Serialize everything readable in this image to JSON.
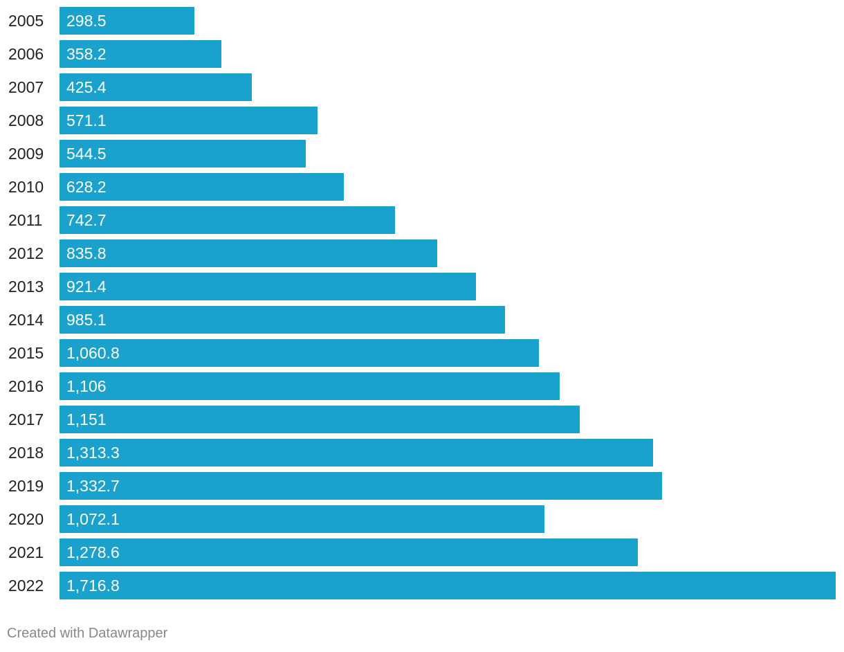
{
  "chart_data": {
    "type": "bar",
    "orientation": "horizontal",
    "categories": [
      "2005",
      "2006",
      "2007",
      "2008",
      "2009",
      "2010",
      "2011",
      "2012",
      "2013",
      "2014",
      "2015",
      "2016",
      "2017",
      "2018",
      "2019",
      "2020",
      "2021",
      "2022"
    ],
    "values": [
      298.5,
      358.2,
      425.4,
      571.1,
      544.5,
      628.2,
      742.7,
      835.8,
      921.4,
      985.1,
      1060.8,
      1106,
      1151,
      1313.3,
      1332.7,
      1072.1,
      1278.6,
      1716.8
    ],
    "value_labels": [
      "298.5",
      "358.2",
      "425.4",
      "571.1",
      "544.5",
      "628.2",
      "742.7",
      "835.8",
      "921.4",
      "985.1",
      "1,060.8",
      "1,106",
      "1,151",
      "1,313.3",
      "1,332.7",
      "1,072.1",
      "1,278.6",
      "1,716.8"
    ],
    "title": "",
    "xlabel": "",
    "ylabel": "",
    "xlim": [
      0,
      1716.8
    ],
    "grid": false,
    "legend": "none",
    "bar_color": "#1aa1cc"
  },
  "footer": {
    "credit": "Created with Datawrapper"
  }
}
